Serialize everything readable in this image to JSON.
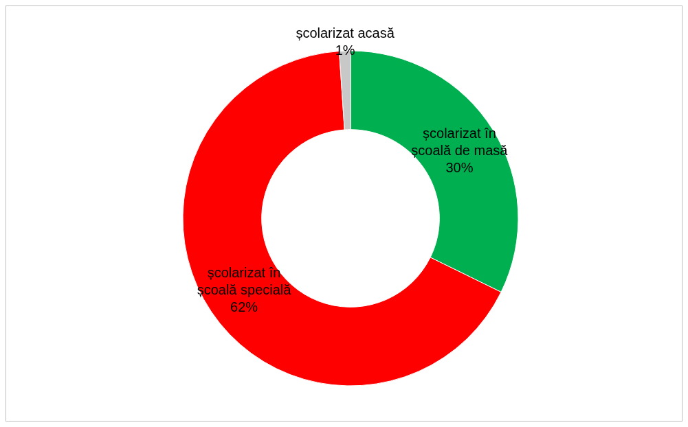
{
  "chart_data": {
    "type": "donut",
    "categories": [
      "școlarizat în școală de masă",
      "școlarizat în școală specială",
      "școlarizat acasă"
    ],
    "values": [
      30,
      62,
      1
    ],
    "colors": [
      "#00b050",
      "#ff0000",
      "#c8c8c8"
    ],
    "value_labels": [
      "30%",
      "62%",
      "1%"
    ]
  }
}
